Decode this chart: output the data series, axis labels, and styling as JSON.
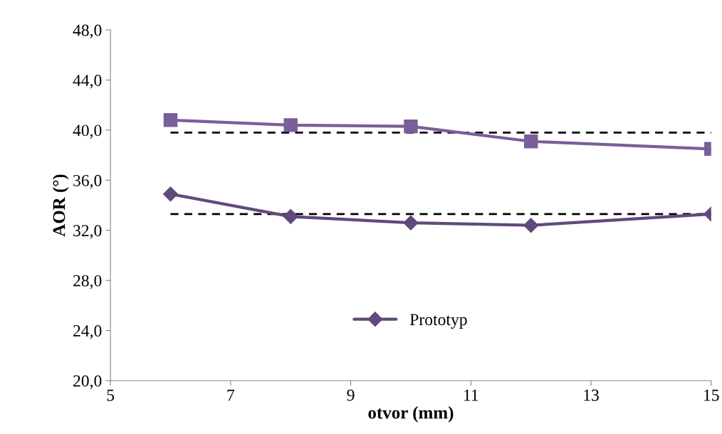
{
  "chart_data": {
    "type": "line",
    "xlabel": "otvor (mm)",
    "ylabel": "AOR (°)",
    "x": [
      6,
      8,
      10,
      12,
      15
    ],
    "series": [
      {
        "name": "Prototyp",
        "color": "#604a7b",
        "marker": "diamond",
        "values": [
          34.9,
          33.1,
          32.6,
          32.4,
          33.3
        ]
      },
      {
        "color": "#7a5f9a",
        "marker": "square",
        "values": [
          40.8,
          40.4,
          40.3,
          39.1,
          38.5
        ]
      },
      {
        "color": "#000000",
        "marker": "none",
        "line_style": "dashed",
        "values": [
          39.8,
          39.8,
          39.8,
          39.8,
          39.8
        ]
      },
      {
        "color": "#000000",
        "marker": "none",
        "line_style": "dashed",
        "values": [
          33.3,
          33.3,
          33.3,
          33.3,
          33.3
        ]
      }
    ],
    "xlim": [
      5,
      15
    ],
    "xticks": [
      5,
      7,
      9,
      11,
      13,
      15
    ],
    "ylim": [
      20,
      48
    ],
    "yticks": [
      {
        "value": 20,
        "label": "20,0"
      },
      {
        "value": 24,
        "label": "24,0"
      },
      {
        "value": 28,
        "label": "28,0"
      },
      {
        "value": 32,
        "label": "32,0"
      },
      {
        "value": 36,
        "label": "36,0"
      },
      {
        "value": 40,
        "label": "40,0"
      },
      {
        "value": 44,
        "label": "44,0"
      },
      {
        "value": 48,
        "label": "48,0"
      }
    ],
    "grid": false,
    "legend": "bottom"
  }
}
